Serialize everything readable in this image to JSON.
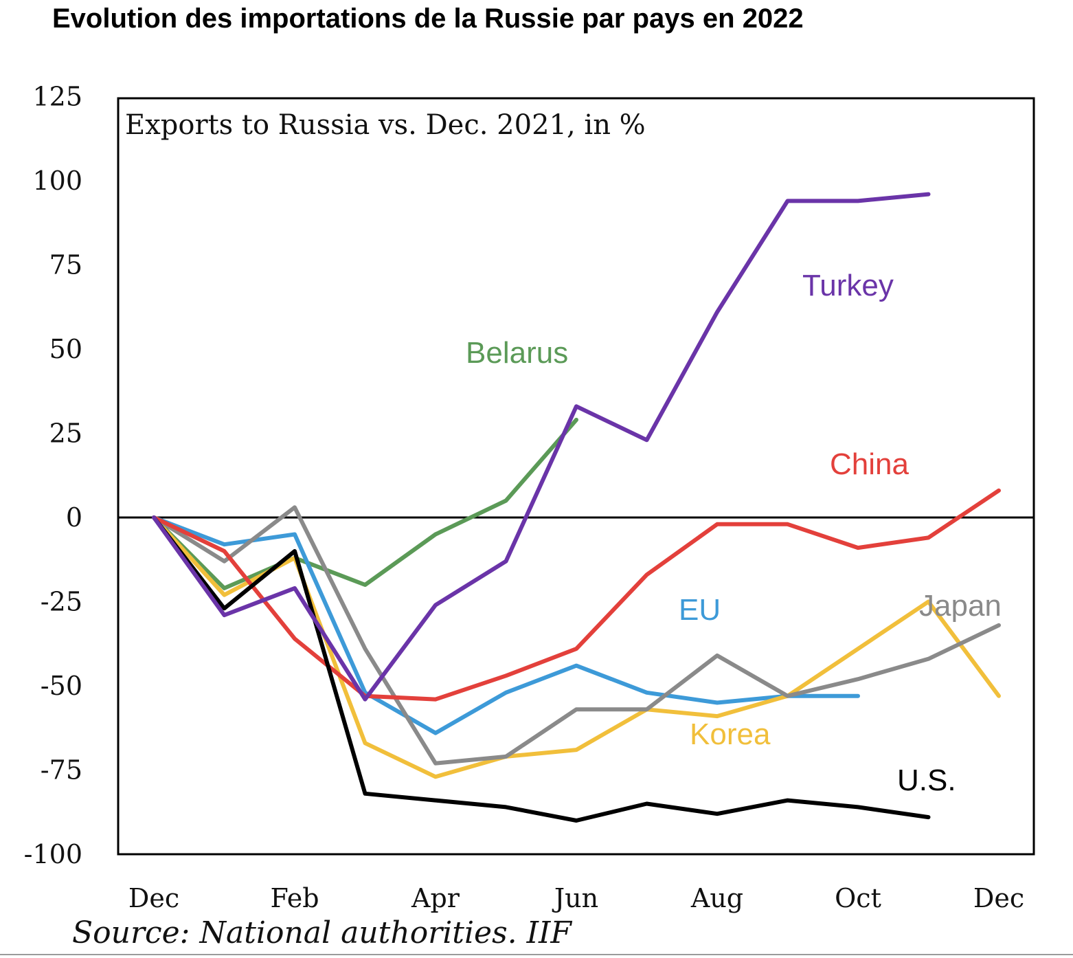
{
  "title": "Evolution des importations de la Russie par pays en 2022",
  "source": "Source: National authorities. IIF",
  "chart_data": {
    "type": "line",
    "title": "Exports to Russia vs. Dec. 2021, in %",
    "xlabel": "",
    "ylabel": "",
    "ylim": [
      -100,
      125
    ],
    "yticks": [
      125,
      100,
      75,
      50,
      25,
      0,
      -25,
      -50,
      -75,
      -100
    ],
    "ytick_labels": [
      "125",
      "100",
      "75",
      "50",
      "25",
      "0",
      "-25",
      "-50",
      "-75",
      "-100"
    ],
    "x": [
      "Dec",
      "Jan",
      "Feb",
      "Mar",
      "Apr",
      "May",
      "Jun",
      "Jul",
      "Aug",
      "Sep",
      "Oct",
      "Nov",
      "Dec"
    ],
    "xtick_labels": [
      "Dec",
      "Feb",
      "Apr",
      "Jun",
      "Aug",
      "Oct",
      "Dec"
    ],
    "grid": false,
    "zero_line": true,
    "legend": "direct labels",
    "series": [
      {
        "name": "Belarus",
        "color": "#5b9a57",
        "values": [
          0,
          -21,
          -12,
          -20,
          -5,
          5,
          29,
          null,
          null,
          null,
          null,
          null,
          null
        ]
      },
      {
        "name": "EU",
        "color": "#3d9ad8",
        "values": [
          0,
          -8,
          -5,
          -52,
          -64,
          -52,
          -44,
          -52,
          -55,
          -53,
          -53,
          null,
          null
        ]
      },
      {
        "name": "Korea",
        "color": "#f1bf3b",
        "values": [
          0,
          -23,
          -12,
          -67,
          -77,
          -71,
          -69,
          -57,
          -59,
          -53,
          -39,
          -25,
          -53
        ]
      },
      {
        "name": "Japan",
        "color": "#8a8a8a",
        "values": [
          0,
          -13,
          3,
          -39,
          -73,
          -71,
          -57,
          -57,
          -41,
          -53,
          -48,
          -42,
          -32
        ]
      },
      {
        "name": "China",
        "color": "#e3403b",
        "values": [
          0,
          -10,
          -36,
          -53,
          -54,
          -47,
          -39,
          -17,
          -2,
          -2,
          -9,
          -6,
          8
        ]
      },
      {
        "name": "U.S.",
        "color": "#000000",
        "values": [
          0,
          -27,
          -10,
          -82,
          -84,
          -86,
          -90,
          -85,
          -88,
          -84,
          -86,
          -89,
          null
        ]
      },
      {
        "name": "Turkey",
        "color": "#6a34a8",
        "values": [
          0,
          -29,
          -21,
          -54,
          -26,
          -13,
          33,
          23,
          61,
          94,
          94,
          96,
          null
        ]
      }
    ]
  }
}
